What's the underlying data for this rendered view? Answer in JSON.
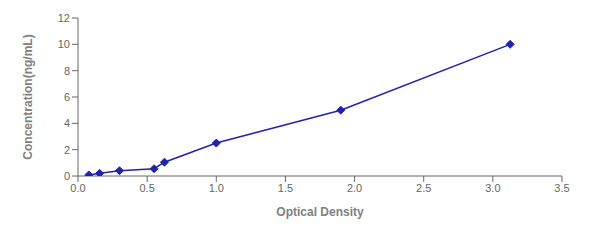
{
  "chart_data": {
    "type": "line",
    "x": [
      0.078,
      0.156,
      0.3,
      0.55,
      0.625,
      1.0,
      1.9,
      3.125
    ],
    "values": [
      0.08,
      0.2,
      0.4,
      0.55,
      1.05,
      2.5,
      5.0,
      10.0
    ],
    "color": "#2222aa",
    "marker": "diamond",
    "xlabel": "Optical Density",
    "ylabel": "Concentration(ng/mL)",
    "xlim": [
      0,
      3.5
    ],
    "ylim": [
      0,
      12
    ],
    "xticks": [
      {
        "value": 0,
        "label": "0.0"
      },
      0.5,
      {
        "value": 1,
        "label": "1.0"
      },
      1.5,
      {
        "value": 2,
        "label": "2.0"
      },
      2.5,
      {
        "value": 3,
        "label": "3.0"
      },
      3.5
    ],
    "yticks": [
      0,
      2,
      4,
      6,
      8,
      10,
      12
    ],
    "grid": false
  }
}
